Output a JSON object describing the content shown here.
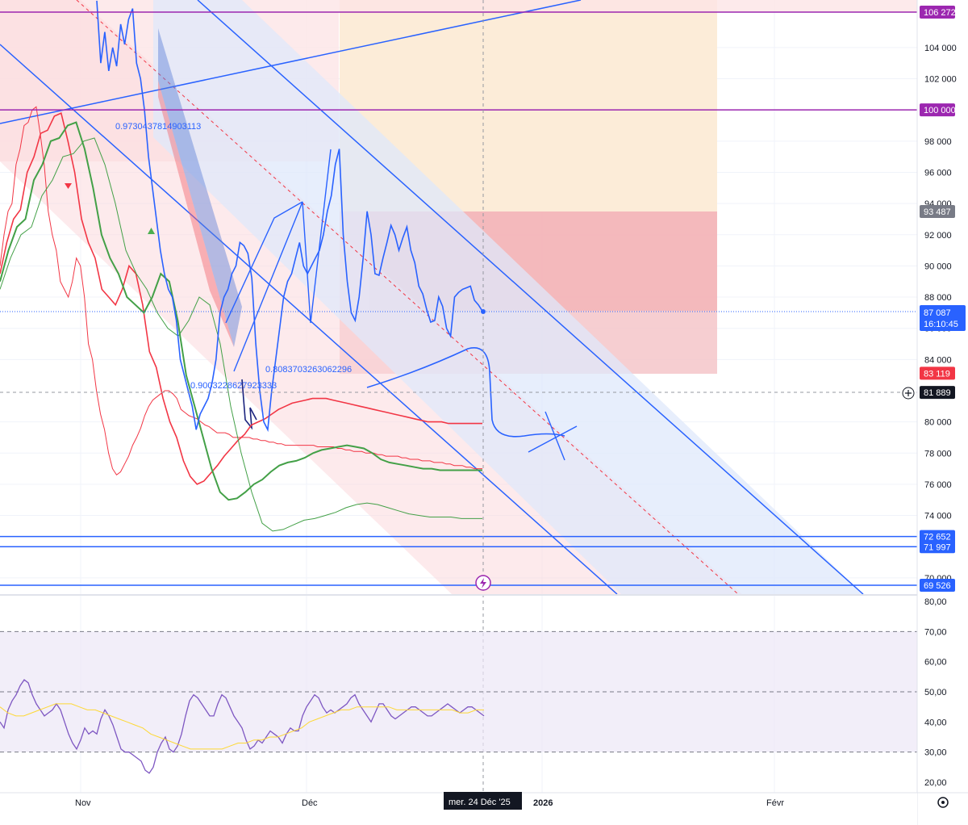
{
  "chart_data": [
    {
      "type": "line",
      "pane": "price",
      "x_labels": [
        "Nov",
        "Déc",
        "2026",
        "Févr"
      ],
      "crosshair_x_label": "mer. 24 Déc '25",
      "y_ticks": [
        104000,
        102000,
        98000,
        96000,
        94000,
        92000,
        90000,
        88000,
        86000,
        84000,
        80000,
        78000,
        76000,
        74000,
        70000
      ],
      "y_tick_labels": [
        "104 000",
        "102 000",
        "98 000",
        "96 000",
        "94 000",
        "92 000",
        "90 000",
        "88 000",
        "86 000",
        "84 000",
        "80 000",
        "78 000",
        "76 000",
        "74 000",
        "70 000"
      ],
      "ylim": [
        69000,
        107000
      ],
      "grid": true,
      "series": [
        {
          "values": [
            90000,
            92000,
            93500,
            94000,
            96500,
            97500,
            99000,
            99200,
            100000,
            100200,
            98500,
            96500,
            93500,
            92000,
            91000,
            89000,
            88500,
            88000,
            89000,
            90500,
            90000,
            88000,
            85000,
            84000,
            82000,
            80500,
            79500,
            78000,
            77000,
            76600,
            76800,
            77300,
            77800,
            78500,
            79000,
            79600,
            80400,
            81000,
            81400,
            81600,
            81800,
            82000,
            82000,
            81800,
            81500,
            80800,
            80600,
            80400,
            80300,
            80200,
            80000,
            79800,
            79700,
            79500,
            79300,
            79300,
            79300,
            79200,
            79000,
            79000,
            79000,
            79000,
            79000,
            78900,
            78900,
            78800,
            78800,
            78700,
            78700,
            78600,
            78600,
            78500,
            78500,
            78500,
            78500,
            78500,
            78500,
            78500,
            78500,
            78400,
            78400,
            78400,
            78400,
            78400,
            78300,
            78300,
            78200,
            78200,
            78100,
            78100,
            78100,
            78000,
            78000,
            78000,
            77900,
            77900,
            77800,
            77800,
            77800,
            77800,
            77700,
            77700,
            77600,
            77600,
            77600,
            77500,
            77500,
            77500,
            77400,
            77400,
            77400,
            77300,
            77300,
            77200,
            77200,
            77200,
            77100,
            77100,
            77000,
            77000,
            77000
          ]
        },
        {
          "values": [
            89500,
            91500,
            93000,
            93600,
            96000,
            97000,
            98500,
            98700,
            99600,
            99800,
            98000,
            96000,
            93000,
            91500,
            90500,
            88500,
            88000,
            87500,
            88500,
            90000,
            89500,
            87500,
            84500,
            83500,
            81500,
            80000,
            79000,
            77500,
            76500,
            76000,
            76200,
            76700,
            77200,
            77800,
            78300,
            78800,
            79200,
            79800,
            80000,
            80200,
            80500,
            80800,
            81000,
            81200,
            81300,
            81400,
            81500,
            81500,
            81500,
            81400,
            81300,
            81200,
            81100,
            81000,
            80900,
            80800,
            80700,
            80600,
            80500,
            80400,
            80300,
            80200,
            80100,
            80000,
            80000,
            80000,
            79900,
            79900,
            79900,
            79900,
            79900,
            79900
          ]
        },
        {
          "values": [
            89000,
            91000,
            92500,
            93000,
            95500,
            96500,
            98000,
            98200,
            99000,
            99200,
            97500,
            95000,
            92000,
            90500,
            89500,
            88000,
            87500,
            87000,
            88000,
            89500,
            89000,
            86500,
            83000,
            81000,
            79000,
            77000,
            75500,
            75000,
            75100,
            75500,
            76000,
            76300,
            76800,
            77200,
            77400,
            77500,
            77700,
            78000,
            78200,
            78300,
            78400,
            78500,
            78400,
            78300,
            78000,
            77600,
            77400,
            77300,
            77200,
            77100,
            77000,
            77000,
            76900,
            76900,
            76900,
            76900,
            76900,
            76900
          ]
        },
        {
          "values": [
            88500,
            90500,
            92000,
            92500,
            94500,
            95500,
            97000,
            97200,
            98000,
            98200,
            96500,
            94000,
            91000,
            89500,
            88500,
            87000,
            86000,
            85500,
            86500,
            88000,
            87500,
            85000,
            81000,
            78000,
            75500,
            73500,
            73000,
            73100,
            73400,
            73700,
            73800,
            74000,
            74200,
            74500,
            74700,
            74800,
            74700,
            74500,
            74300,
            74100,
            74000,
            73900,
            73900,
            73900,
            73800,
            73800,
            73800
          ]
        },
        {
          "values": [
            107000,
            103000,
            105000,
            102500,
            104000,
            102800,
            105500,
            104200,
            105800,
            106500,
            103000,
            102000,
            100000,
            97000,
            95000,
            93000,
            91000,
            89500,
            88500,
            88000,
            86500,
            84000,
            83000,
            82000,
            81000,
            79500,
            80500,
            81000,
            81500,
            82500,
            84000,
            87000,
            88000,
            88500,
            89500,
            90000,
            91500,
            91300,
            90800,
            89200,
            85000,
            82000,
            80000,
            79500,
            82000,
            84000,
            86000,
            88000,
            89000,
            89500,
            90500,
            91500,
            90000,
            89500,
            90000,
            90500,
            91000,
            92000,
            93500,
            94500,
            96500,
            97500,
            92000,
            89000,
            87000,
            86500,
            88000,
            90500,
            93500,
            92000,
            89500,
            89400,
            90500,
            91500,
            92600,
            92000,
            91000,
            91800,
            92500,
            91000,
            90200,
            88700,
            88200,
            87200,
            86400,
            86500,
            88000,
            87400,
            86000,
            85500,
            88000,
            88300,
            88500,
            88600,
            88700,
            87800,
            87500,
            87100
          ]
        }
      ],
      "horizontal_levels": [
        {
          "value": 106272,
          "label": "106 272",
          "color": "#9c27b0"
        },
        {
          "value": 100000,
          "label": "100 000",
          "color": "#9c27b0"
        },
        {
          "value": 93487,
          "label": "93 487",
          "color": "#787b86"
        },
        {
          "value": 83119,
          "label": "83 119",
          "color": "#f23645"
        },
        {
          "value": 81889,
          "label": "81 889",
          "color": "#131722"
        },
        {
          "value": 72652,
          "label": "72 652",
          "color": "#2962ff"
        },
        {
          "value": 71997,
          "label": "71 997",
          "color": "#2962ff"
        },
        {
          "value": 69526,
          "label": "69 526",
          "color": "#2962ff"
        }
      ],
      "last_price": {
        "value": 87087,
        "label": "87 087",
        "countdown": "16:10:45",
        "color": "#2962ff"
      },
      "annotations": [
        "0.9730437814903113",
        "0.8083703263062296",
        "0.9003228627923333"
      ],
      "colors": {
        "line": "#2962ff",
        "red_band": "#f23645",
        "green_band": "#4caf50",
        "purple": "#9c27b0",
        "fib_orange": "#fcecd8",
        "fib_red": "#f5b5b9",
        "channel_blue": "#dfe8fb"
      }
    },
    {
      "type": "line",
      "pane": "oscillator",
      "y_ticks": [
        80,
        70,
        60,
        50,
        40,
        30,
        20
      ],
      "y_tick_labels": [
        "80,00",
        "70,00",
        "60,00",
        "50,00",
        "40,00",
        "30,00",
        "20,00"
      ],
      "ylim": [
        18,
        82
      ],
      "bands": [
        70,
        50,
        30
      ],
      "series": [
        {
          "values": [
            40,
            38,
            44,
            47,
            49,
            52,
            54,
            53,
            49,
            46,
            44,
            42,
            43,
            44,
            46,
            44,
            40,
            36,
            33,
            31,
            34,
            38,
            36,
            37,
            36,
            41,
            44,
            42,
            39,
            35,
            31,
            30,
            30,
            29,
            28,
            27,
            24,
            23,
            25,
            30,
            33,
            35,
            31,
            30,
            32,
            36,
            42,
            47,
            49,
            48,
            46,
            44,
            42,
            42,
            46,
            49,
            48,
            45,
            42,
            40,
            38,
            34,
            31,
            32,
            34,
            33,
            35,
            37,
            36,
            35,
            33,
            36,
            38,
            37,
            37,
            42,
            45,
            47,
            49,
            48,
            45,
            43,
            44,
            43,
            44,
            45,
            46,
            48,
            49,
            46,
            44,
            42,
            40,
            43,
            46,
            46,
            44,
            42,
            41,
            42,
            43,
            44,
            45,
            45,
            44,
            43,
            42,
            42,
            43,
            44,
            45,
            46,
            45,
            44,
            43,
            44,
            45,
            45,
            44,
            43,
            42
          ]
        },
        {
          "values": [
            45,
            43,
            42,
            42,
            43,
            44,
            45,
            46,
            46,
            46,
            45,
            44,
            44,
            43,
            42,
            41,
            40,
            39,
            38,
            36,
            35,
            34,
            33,
            32,
            31,
            31,
            31,
            31,
            31,
            32,
            33,
            33,
            34,
            34,
            35,
            35,
            36,
            37,
            38,
            40,
            41,
            42,
            43,
            44,
            44,
            45,
            45,
            45,
            45,
            45,
            44,
            44,
            44,
            44,
            44,
            44,
            44,
            44,
            43,
            43,
            44,
            44
          ]
        }
      ],
      "colors": {
        "rsi": "#7e57c2",
        "ma": "#fdd835",
        "band_fill": "#ede7f6"
      }
    }
  ]
}
